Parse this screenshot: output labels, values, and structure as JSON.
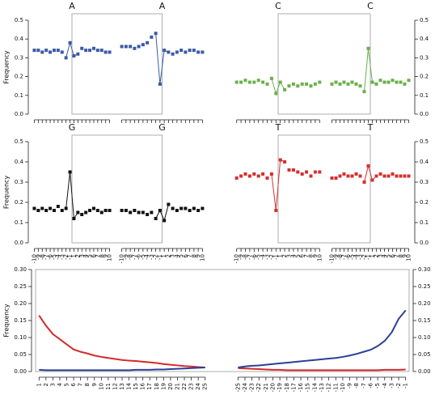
{
  "chart_data": [
    {
      "type": "dot",
      "title": "A",
      "ylabel": "Frequency",
      "yaxis_side": "left",
      "color": "#3a5aa6",
      "ylim": [
        0,
        0.5
      ],
      "yticks": [
        {
          "value": 0,
          "label": "0.0"
        },
        0.1,
        0.2,
        0.3,
        0.4,
        0.5
      ],
      "panels": [
        {
          "values": [
            0.34,
            0.34,
            0.33,
            0.34,
            0.33,
            0.34,
            0.34,
            0.33,
            0.3,
            0.38,
            0.31,
            0.32,
            0.35,
            0.34,
            0.34,
            0.35,
            0.34,
            0.34,
            0.33,
            0.33
          ]
        },
        {
          "values": [
            0.36,
            0.36,
            0.36,
            0.35,
            0.36,
            0.37,
            0.38,
            0.41,
            0.43,
            0.16,
            0.34,
            0.33,
            0.32,
            0.33,
            0.34,
            0.33,
            0.34,
            0.34,
            0.33,
            0.33
          ]
        }
      ]
    },
    {
      "type": "dot",
      "title": "C",
      "yaxis_side": "right",
      "color": "#6ab04c",
      "ylim": [
        0,
        0.5
      ],
      "yticks": [
        {
          "value": 0,
          "label": "0.0"
        },
        0.1,
        0.2,
        0.3,
        0.4,
        0.5
      ],
      "panels": [
        {
          "values": [
            0.17,
            0.17,
            0.18,
            0.17,
            0.17,
            0.18,
            0.17,
            0.16,
            0.19,
            0.11,
            0.17,
            0.13,
            0.15,
            0.16,
            0.15,
            0.16,
            0.16,
            0.15,
            0.16,
            0.17
          ]
        },
        {
          "values": [
            0.16,
            0.17,
            0.16,
            0.17,
            0.16,
            0.17,
            0.16,
            0.15,
            0.12,
            0.35,
            0.17,
            0.16,
            0.18,
            0.17,
            0.17,
            0.18,
            0.17,
            0.17,
            0.16,
            0.18
          ]
        }
      ]
    },
    {
      "type": "dot",
      "title": "G",
      "ylabel": "Frequency",
      "yaxis_side": "left",
      "color": "#111111",
      "ylim": [
        0,
        0.5
      ],
      "yticks": [
        {
          "value": 0,
          "label": "0.0"
        },
        0.1,
        0.2,
        0.3,
        0.4,
        0.5
      ],
      "categories": [
        -10,
        -9,
        -8,
        -7,
        -6,
        -5,
        -4,
        -3,
        -2,
        -1,
        1,
        2,
        3,
        4,
        5,
        6,
        7,
        8,
        9,
        10
      ],
      "panels": [
        {
          "values": [
            0.17,
            0.16,
            0.17,
            0.16,
            0.17,
            0.16,
            0.18,
            0.16,
            0.17,
            0.35,
            0.12,
            0.15,
            0.14,
            0.15,
            0.16,
            0.17,
            0.16,
            0.15,
            0.16,
            0.16
          ]
        },
        {
          "values": [
            0.16,
            0.16,
            0.15,
            0.16,
            0.15,
            0.15,
            0.14,
            0.15,
            0.12,
            0.16,
            0.11,
            0.19,
            0.17,
            0.16,
            0.17,
            0.17,
            0.16,
            0.17,
            0.16,
            0.17
          ]
        }
      ]
    },
    {
      "type": "dot",
      "title": "T",
      "yaxis_side": "right",
      "color": "#d62f2f",
      "ylim": [
        0,
        0.5
      ],
      "yticks": [
        {
          "value": 0,
          "label": "0.0"
        },
        0.1,
        0.2,
        0.3,
        0.4,
        0.5
      ],
      "categories": [
        -10,
        -9,
        -8,
        -7,
        -6,
        -5,
        -4,
        -3,
        -2,
        -1,
        1,
        2,
        3,
        4,
        5,
        6,
        7,
        8,
        9,
        10
      ],
      "panels": [
        {
          "values": [
            0.32,
            0.33,
            0.34,
            0.33,
            0.34,
            0.33,
            0.34,
            0.32,
            0.34,
            0.16,
            0.41,
            0.4,
            0.36,
            0.36,
            0.35,
            0.34,
            0.35,
            0.33,
            0.35,
            0.35
          ]
        },
        {
          "values": [
            0.32,
            0.32,
            0.33,
            0.34,
            0.33,
            0.33,
            0.34,
            0.33,
            0.3,
            0.38,
            0.31,
            0.33,
            0.34,
            0.33,
            0.33,
            0.34,
            0.33,
            0.33,
            0.33,
            0.33
          ]
        }
      ]
    },
    {
      "type": "line",
      "ylabel": "Frequency",
      "yaxis_side": "both",
      "ylim": [
        0,
        0.3
      ],
      "yticks": [
        {
          "value": 0,
          "label": "0.00"
        },
        0.05,
        {
          "value": 0.1,
          "label": "0.10"
        },
        0.15,
        {
          "value": 0.2,
          "label": "0.20"
        },
        0.25,
        {
          "value": 0.3,
          "label": "0.30"
        }
      ],
      "panels": [
        {
          "categories": [
            1,
            2,
            3,
            4,
            5,
            6,
            7,
            8,
            9,
            10,
            11,
            12,
            13,
            14,
            15,
            16,
            17,
            18,
            19,
            20,
            21,
            22,
            23,
            24,
            25
          ],
          "series": [
            {
              "color": "#d42a2a",
              "values": [
                0.165,
                0.135,
                0.11,
                0.095,
                0.08,
                0.065,
                0.058,
                0.053,
                0.047,
                0.043,
                0.04,
                0.037,
                0.034,
                0.032,
                0.031,
                0.029,
                0.027,
                0.025,
                0.022,
                0.02,
                0.018,
                0.016,
                0.015,
                0.013,
                0.012
              ]
            },
            {
              "color": "#2b3f94",
              "values": [
                0.005,
                0.004,
                0.004,
                0.004,
                0.004,
                0.004,
                0.004,
                0.004,
                0.004,
                0.004,
                0.004,
                0.004,
                0.004,
                0.004,
                0.005,
                0.005,
                0.005,
                0.006,
                0.006,
                0.007,
                0.008,
                0.009,
                0.01,
                0.011,
                0.012
              ]
            }
          ]
        },
        {
          "categories": [
            -25,
            -24,
            -23,
            -22,
            -21,
            -20,
            -19,
            -18,
            -17,
            -16,
            -15,
            -14,
            -13,
            -12,
            -11,
            -10,
            -9,
            -8,
            -7,
            -6,
            -5,
            -4,
            -3,
            -2,
            -1
          ],
          "series": [
            {
              "color": "#d42a2a",
              "values": [
                0.01,
                0.009,
                0.008,
                0.007,
                0.006,
                0.005,
                0.005,
                0.004,
                0.004,
                0.004,
                0.004,
                0.004,
                0.004,
                0.004,
                0.004,
                0.004,
                0.004,
                0.004,
                0.004,
                0.004,
                0.004,
                0.005,
                0.005,
                0.005,
                0.006
              ]
            },
            {
              "color": "#2b3f94",
              "values": [
                0.012,
                0.015,
                0.017,
                0.018,
                0.02,
                0.022,
                0.024,
                0.026,
                0.028,
                0.03,
                0.032,
                0.034,
                0.036,
                0.038,
                0.04,
                0.043,
                0.047,
                0.052,
                0.058,
                0.064,
                0.075,
                0.09,
                0.115,
                0.155,
                0.18
              ]
            }
          ]
        }
      ]
    }
  ]
}
